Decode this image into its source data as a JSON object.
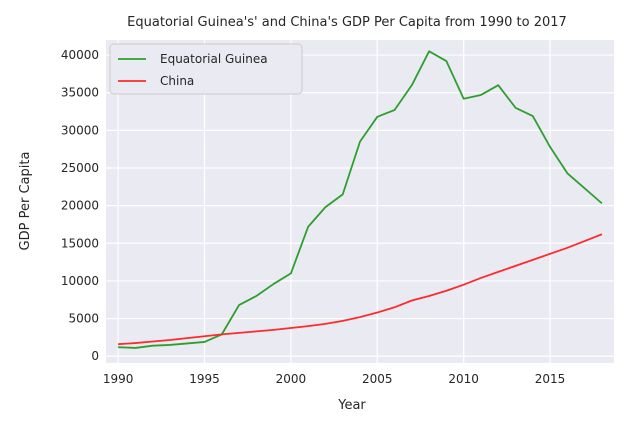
{
  "chart_data": {
    "type": "line",
    "title": "Equatorial Guinea's' and China's GDP Per Capita from 1990 to 2017",
    "xlabel": "Year",
    "ylabel": "GDP Per Capita",
    "xlim": [
      1989.3,
      2018.7
    ],
    "ylim": [
      -900,
      42000
    ],
    "xticks": [
      1990,
      1995,
      2000,
      2005,
      2010,
      2015
    ],
    "yticks": [
      0,
      5000,
      10000,
      15000,
      20000,
      25000,
      30000,
      35000,
      40000
    ],
    "grid": true,
    "legend_position": "top-left",
    "x": [
      1990,
      1991,
      1992,
      1993,
      1994,
      1995,
      1996,
      1997,
      1998,
      1999,
      2000,
      2001,
      2002,
      2003,
      2004,
      2005,
      2006,
      2007,
      2008,
      2009,
      2010,
      2011,
      2012,
      2013,
      2014,
      2015,
      2016,
      2017,
      2018
    ],
    "series": [
      {
        "name": "Equatorial Guinea",
        "color": "#2ca02c",
        "values": [
          1200,
          1100,
          1400,
          1500,
          1700,
          1900,
          2900,
          6800,
          8000,
          9600,
          11000,
          17200,
          19800,
          21500,
          28500,
          31800,
          32700,
          36000,
          40500,
          39200,
          34200,
          34700,
          36000,
          33000,
          31900,
          27800,
          24300,
          22300,
          20300
        ]
      },
      {
        "name": "China",
        "color": "#ff2a2a",
        "values": [
          1600,
          1750,
          1950,
          2150,
          2400,
          2650,
          2900,
          3100,
          3300,
          3500,
          3750,
          4000,
          4300,
          4700,
          5200,
          5800,
          6500,
          7400,
          8000,
          8700,
          9500,
          10400,
          11200,
          12000,
          12800,
          13600,
          14400,
          15300,
          16200
        ]
      }
    ]
  }
}
